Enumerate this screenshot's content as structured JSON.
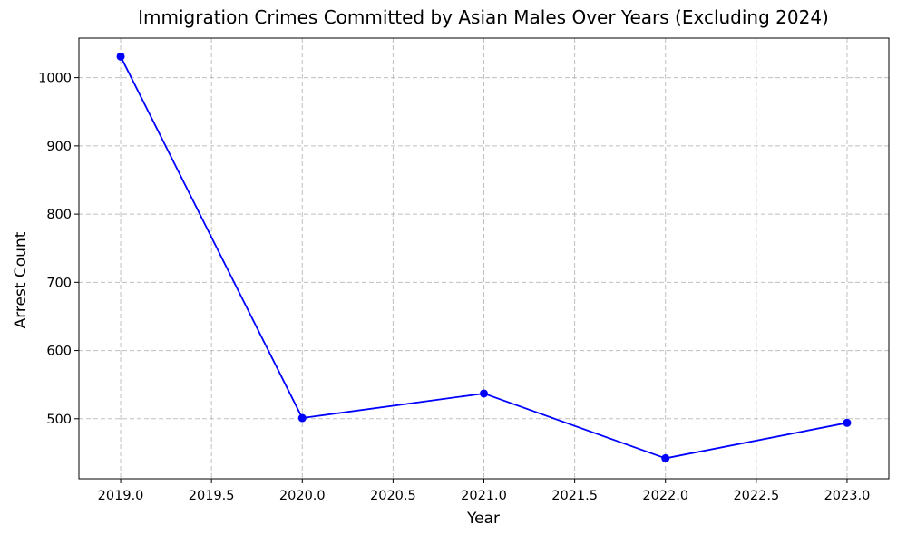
{
  "chart_data": {
    "type": "line",
    "title": "Immigration Crimes Committed by Asian Males Over Years (Excluding 2024)",
    "xlabel": "Year",
    "ylabel": "Arrest Count",
    "x": [
      2019,
      2020,
      2021,
      2022,
      2023
    ],
    "series": [
      {
        "values": [
          1031,
          501,
          537,
          442,
          494
        ],
        "color": "#0000ff",
        "marker": "circle"
      }
    ],
    "xlim": [
      2018.77,
      2023.23
    ],
    "ylim": [
      412,
      1058
    ],
    "xticks": [
      2019.0,
      2019.5,
      2020.0,
      2020.5,
      2021.0,
      2021.5,
      2022.0,
      2022.5,
      2023.0
    ],
    "xtick_labels": [
      "2019.0",
      "2019.5",
      "2020.0",
      "2020.5",
      "2021.0",
      "2021.5",
      "2022.0",
      "2022.5",
      "2023.0"
    ],
    "yticks": [
      500,
      600,
      700,
      800,
      900,
      1000
    ],
    "ytick_labels": [
      "500",
      "600",
      "700",
      "800",
      "900",
      "1000"
    ],
    "grid": true,
    "grid_color": "#b0b0b0"
  }
}
